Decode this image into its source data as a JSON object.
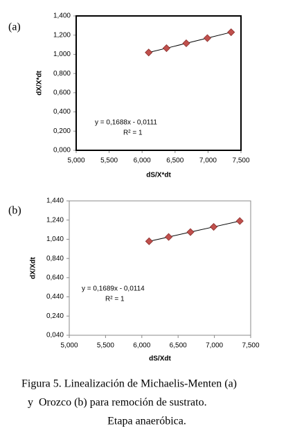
{
  "chart_data": [
    {
      "type": "scatter",
      "panel_label": "(a)",
      "x_label": "dS/X*dt",
      "y_label": "dX/X*dt",
      "annotations": [
        "y = 0,1688x - 0,0111",
        "R² = 1"
      ],
      "x": [
        6.1,
        6.37,
        6.67,
        6.99,
        7.35
      ],
      "values": [
        1.019,
        1.064,
        1.115,
        1.169,
        1.23
      ],
      "color": "#c0504d",
      "xlim": [
        5.0,
        7.5
      ],
      "xticks": [
        {
          "value": 5.0,
          "label": "5,000"
        },
        {
          "value": 5.5,
          "label": "5,500"
        },
        {
          "value": 6.0,
          "label": "6,000"
        },
        {
          "value": 6.5,
          "label": "6,500"
        },
        {
          "value": 7.0,
          "label": "7,000"
        },
        {
          "value": 7.5,
          "label": "7,500"
        }
      ],
      "ylim": [
        0.0,
        1.4
      ],
      "yticks": [
        {
          "value": 0.0,
          "label": "0,000"
        },
        {
          "value": 0.2,
          "label": "0,200"
        },
        {
          "value": 0.4,
          "label": "0,400"
        },
        {
          "value": 0.6,
          "label": "0,600"
        },
        {
          "value": 0.8,
          "label": "0,800"
        },
        {
          "value": 1.0,
          "label": "1,000"
        },
        {
          "value": 1.2,
          "label": "1,200"
        },
        {
          "value": 1.4,
          "label": "1,400"
        }
      ]
    },
    {
      "type": "scatter",
      "panel_label": "(b)",
      "x_label": "dS/Xdt",
      "y_label": "dX/Xdt",
      "annotations": [
        "y = 0,1689x - 0,0114",
        "R² = 1"
      ],
      "x": [
        6.1,
        6.37,
        6.67,
        6.99,
        7.35
      ],
      "values": [
        1.019,
        1.064,
        1.115,
        1.169,
        1.23
      ],
      "color": "#c0504d",
      "xlim": [
        5.0,
        7.5
      ],
      "xticks": [
        {
          "value": 5.0,
          "label": "5,000"
        },
        {
          "value": 5.5,
          "label": "5,500"
        },
        {
          "value": 6.0,
          "label": "6,000"
        },
        {
          "value": 6.5,
          "label": "6,500"
        },
        {
          "value": 7.0,
          "label": "7,000"
        },
        {
          "value": 7.5,
          "label": "7,500"
        }
      ],
      "ylim": [
        0.04,
        1.44
      ],
      "yticks": [
        {
          "value": 0.04,
          "label": "0,040"
        },
        {
          "value": 0.24,
          "label": "0,240"
        },
        {
          "value": 0.44,
          "label": "0,440"
        },
        {
          "value": 0.64,
          "label": "0,640"
        },
        {
          "value": 0.84,
          "label": "0,840"
        },
        {
          "value": 1.04,
          "label": "1,040"
        },
        {
          "value": 1.24,
          "label": "1,240"
        },
        {
          "value": 1.44,
          "label": "1,440"
        }
      ]
    }
  ],
  "caption": [
    "Figura 5. Linealización de Michaelis-Menten (a)",
    "y  Orozco (b) para remoción de sustrato.",
    "Etapa anaeróbica."
  ]
}
